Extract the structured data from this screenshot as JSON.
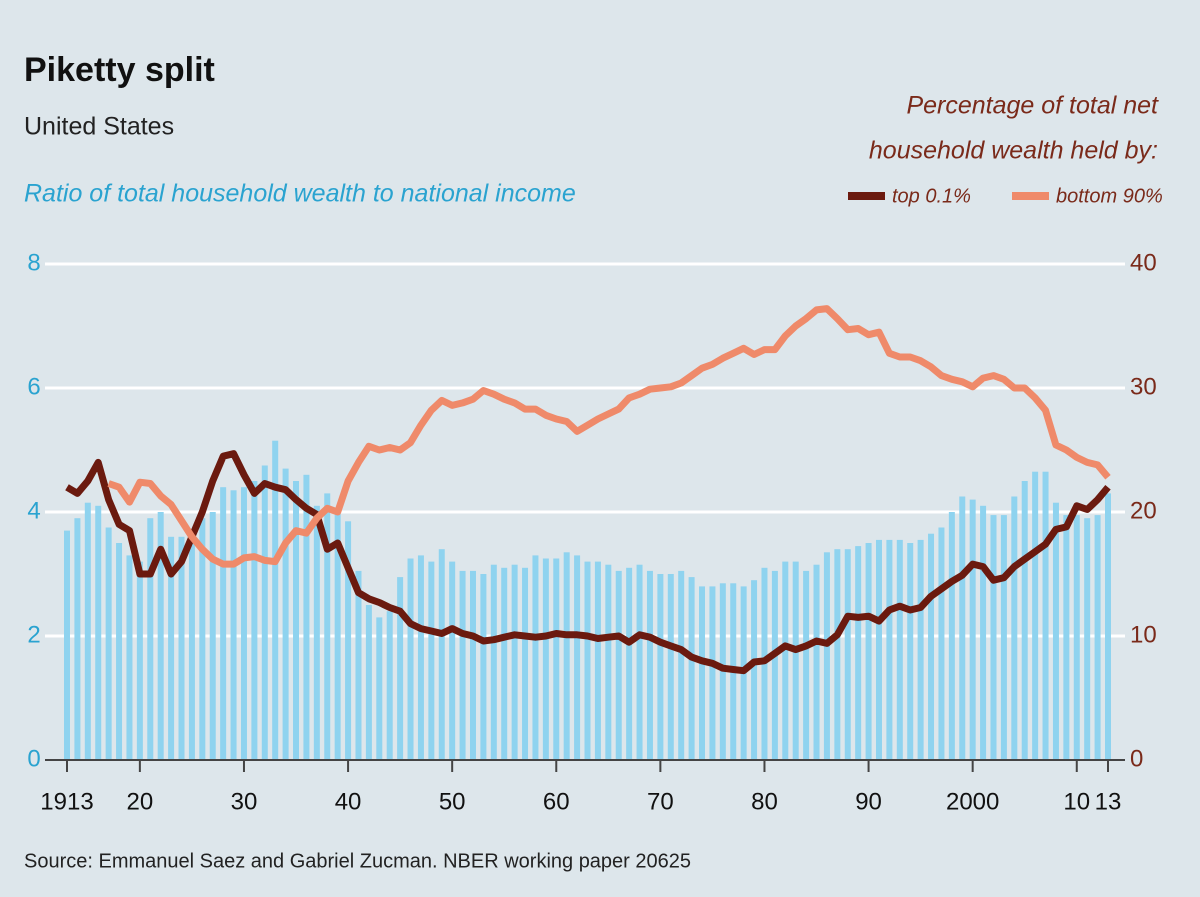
{
  "chart_data": {
    "type": "combo",
    "title": "Piketty split",
    "subtitle": "United States",
    "ylabel": "Ratio of total household wealth to national income",
    "y2label": [
      "Percentage of total net",
      "household wealth held by:"
    ],
    "source": "Source: Emmanuel Saez and Gabriel Zucman. NBER working paper 20625",
    "x": [
      1913,
      1914,
      1915,
      1916,
      1917,
      1918,
      1919,
      1920,
      1921,
      1922,
      1923,
      1924,
      1925,
      1926,
      1927,
      1928,
      1929,
      1930,
      1931,
      1932,
      1933,
      1934,
      1935,
      1936,
      1937,
      1938,
      1939,
      1940,
      1941,
      1942,
      1943,
      1944,
      1945,
      1946,
      1947,
      1948,
      1949,
      1950,
      1951,
      1952,
      1953,
      1954,
      1955,
      1956,
      1957,
      1958,
      1959,
      1960,
      1961,
      1962,
      1963,
      1964,
      1965,
      1966,
      1967,
      1968,
      1969,
      1970,
      1971,
      1972,
      1973,
      1974,
      1975,
      1976,
      1977,
      1978,
      1979,
      1980,
      1981,
      1982,
      1983,
      1984,
      1985,
      1986,
      1987,
      1988,
      1989,
      1990,
      1991,
      1992,
      1993,
      1994,
      1995,
      1996,
      1997,
      1998,
      1999,
      2000,
      2001,
      2002,
      2003,
      2004,
      2005,
      2006,
      2007,
      2008,
      2009,
      2010,
      2011,
      2012,
      2013
    ],
    "xlim": [
      1913,
      2013
    ],
    "xticks": [
      1913,
      {
        "value": 1920,
        "label": "20"
      },
      {
        "value": 1930,
        "label": "30"
      },
      {
        "value": 1940,
        "label": "40"
      },
      {
        "value": 1950,
        "label": "50"
      },
      {
        "value": 1960,
        "label": "60"
      },
      {
        "value": 1970,
        "label": "70"
      },
      {
        "value": 1980,
        "label": "80"
      },
      {
        "value": 1990,
        "label": "90"
      },
      2000,
      {
        "value": 2010,
        "label": "10"
      },
      {
        "value": 2013,
        "label": "13"
      }
    ],
    "ylim": [
      0,
      8
    ],
    "yticks": [
      0,
      2,
      4,
      6,
      8
    ],
    "y2lim": [
      0,
      40
    ],
    "y2ticks": [
      0,
      10,
      20,
      30,
      40
    ],
    "grid": true,
    "legend": "top-right",
    "series": [
      {
        "type": "bar",
        "axis": "y",
        "color": "#8fd3ef",
        "values": [
          3.7,
          3.9,
          4.15,
          4.1,
          3.75,
          3.5,
          3.3,
          3.2,
          3.9,
          4.0,
          3.6,
          3.6,
          3.7,
          3.9,
          4.0,
          4.4,
          4.35,
          4.4,
          4.5,
          4.75,
          5.15,
          4.7,
          4.5,
          4.6,
          4.1,
          4.3,
          4.0,
          3.85,
          3.05,
          2.5,
          2.3,
          2.4,
          2.95,
          3.25,
          3.3,
          3.2,
          3.4,
          3.2,
          3.05,
          3.05,
          3.0,
          3.15,
          3.1,
          3.15,
          3.1,
          3.3,
          3.25,
          3.25,
          3.35,
          3.3,
          3.2,
          3.2,
          3.15,
          3.05,
          3.1,
          3.15,
          3.05,
          3.0,
          3.0,
          3.05,
          2.95,
          2.8,
          2.8,
          2.85,
          2.85,
          2.8,
          2.9,
          3.1,
          3.05,
          3.2,
          3.2,
          3.05,
          3.15,
          3.35,
          3.4,
          3.4,
          3.45,
          3.5,
          3.55,
          3.55,
          3.55,
          3.5,
          3.55,
          3.65,
          3.75,
          4.0,
          4.25,
          4.2,
          4.1,
          3.95,
          3.95,
          4.25,
          4.5,
          4.65,
          4.65,
          4.15,
          3.95,
          3.95,
          3.9,
          3.95,
          4.3
        ]
      },
      {
        "type": "line",
        "axis": "y2",
        "name": "top 0.1%",
        "color": "#6b1a0f",
        "values": [
          22,
          21.5,
          22.5,
          24,
          21,
          19,
          18.5,
          15,
          15,
          17,
          15,
          16,
          18,
          20,
          22.5,
          24.5,
          24.7,
          23,
          21.5,
          22.3,
          22,
          21.8,
          21,
          20.3,
          19.8,
          17,
          17.5,
          15.5,
          13.5,
          13,
          12.7,
          12.3,
          12,
          11,
          10.6,
          10.4,
          10.2,
          10.6,
          10.2,
          10,
          9.6,
          9.7,
          9.9,
          10.1,
          10,
          9.9,
          10,
          10.2,
          10.1,
          10.1,
          10,
          9.8,
          9.9,
          10,
          9.5,
          10.1,
          9.9,
          9.5,
          9.2,
          8.9,
          8.3,
          8,
          7.8,
          7.4,
          7.3,
          7.2,
          7.9,
          8,
          8.6,
          9.2,
          8.9,
          9.2,
          9.6,
          9.4,
          10.1,
          11.6,
          11.5,
          11.6,
          11.2,
          12.1,
          12.4,
          12.1,
          12.3,
          13.2,
          13.8,
          14.4,
          14.9,
          15.8,
          15.6,
          14.5,
          14.7,
          15.6,
          16.2,
          16.8,
          17.4,
          18.6,
          18.8,
          20.5,
          20.2,
          21,
          22
        ]
      },
      {
        "type": "line",
        "axis": "y2",
        "name": "bottom 90%",
        "color": "#ef8a6a",
        "values": [
          null,
          null,
          null,
          null,
          22.3,
          22,
          20.8,
          22.4,
          22.3,
          21.3,
          20.6,
          19.3,
          18,
          17,
          16.2,
          15.8,
          15.8,
          16.3,
          16.4,
          16.1,
          16,
          17.5,
          18.5,
          18.3,
          19.5,
          20.3,
          20,
          22.5,
          24,
          25.3,
          25,
          25.2,
          25,
          25.6,
          27,
          28.2,
          29,
          28.6,
          28.8,
          29.1,
          29.8,
          29.5,
          29.1,
          28.8,
          28.3,
          28.3,
          27.8,
          27.5,
          27.3,
          26.5,
          27,
          27.5,
          27.9,
          28.3,
          29.2,
          29.5,
          29.9,
          30,
          30.1,
          30.4,
          31,
          31.6,
          31.9,
          32.4,
          32.8,
          33.2,
          32.7,
          33.1,
          33.1,
          34.2,
          35,
          35.6,
          36.3,
          36.4,
          35.6,
          34.7,
          34.8,
          34.3,
          34.5,
          32.8,
          32.5,
          32.5,
          32.2,
          31.7,
          31,
          30.7,
          30.5,
          30.1,
          30.8,
          31,
          30.7,
          30,
          30,
          29.2,
          28.2,
          25.4,
          25,
          24.4,
          24,
          23.8,
          22.8
        ]
      }
    ]
  }
}
